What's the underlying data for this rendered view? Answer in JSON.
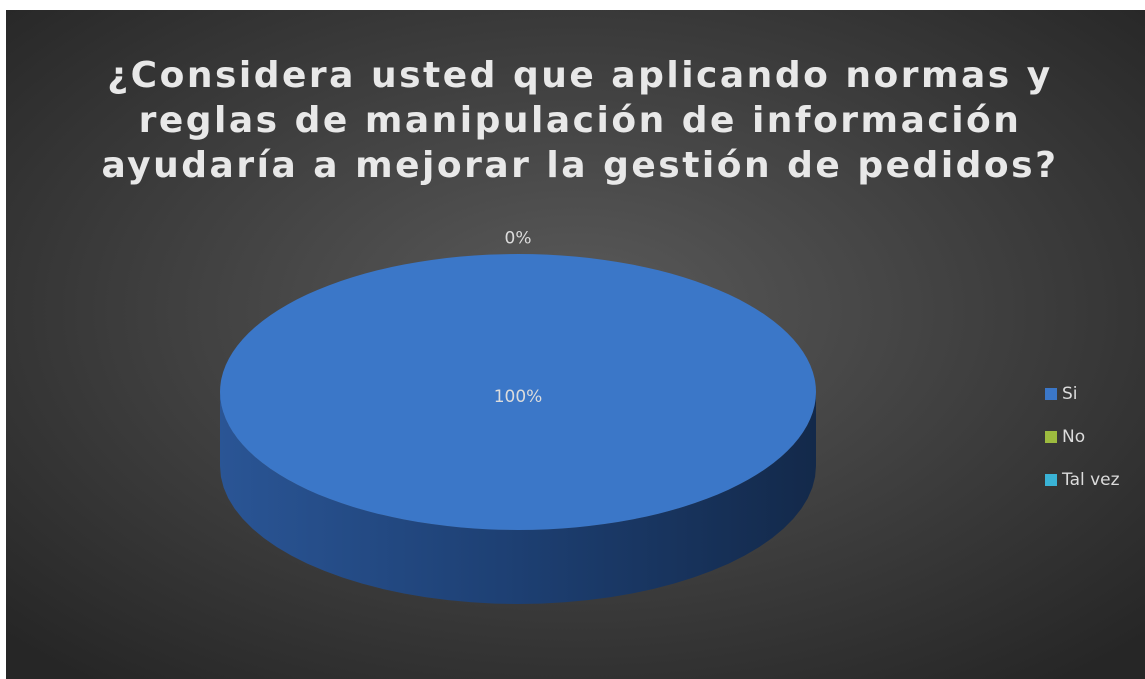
{
  "chart_data": {
    "type": "pie",
    "title": [
      "¿Considera usted que aplicando normas y",
      "reglas de manipulación de información",
      "ayudaría a mejorar la gestión de pedidos?"
    ],
    "categories": [
      "Si",
      "No",
      "Tal vez"
    ],
    "values": [
      100,
      0,
      0
    ],
    "value_labels": [
      "100%",
      "0%",
      null
    ],
    "colors": [
      "#3b77c8",
      "#9dbb3f",
      "#3ab3d6"
    ],
    "legend": "right"
  }
}
